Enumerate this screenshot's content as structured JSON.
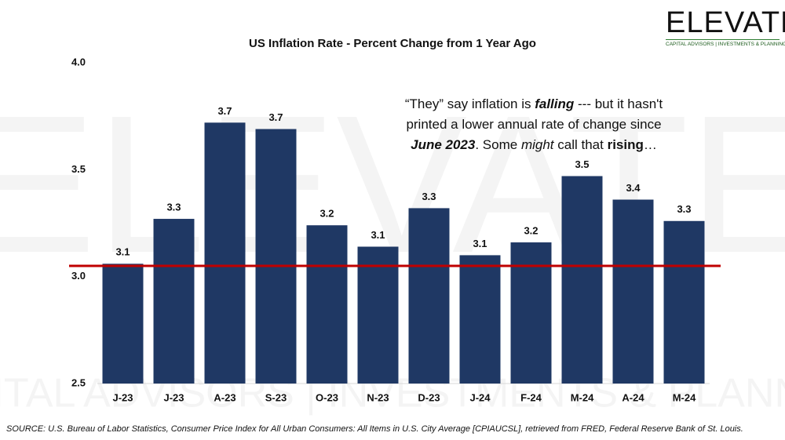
{
  "brand": {
    "name": "ELEVATE",
    "tagline": "CAPITAL ADVISORS | INVESTMENTS & PLANNING"
  },
  "chart_data": {
    "type": "bar",
    "title": "US Inflation Rate - Percent Change from 1 Year Ago",
    "categories": [
      "J-23",
      "J-23",
      "A-23",
      "S-23",
      "O-23",
      "N-23",
      "D-23",
      "J-24",
      "F-24",
      "M-24",
      "A-24",
      "M-24"
    ],
    "values": [
      3.06,
      3.27,
      3.72,
      3.69,
      3.24,
      3.14,
      3.32,
      3.1,
      3.16,
      3.47,
      3.36,
      3.26
    ],
    "value_labels": [
      "3.1",
      "3.3",
      "3.7",
      "3.7",
      "3.2",
      "3.1",
      "3.3",
      "3.1",
      "3.2",
      "3.5",
      "3.4",
      "3.3"
    ],
    "color": "#1f3864",
    "ylim": [
      2.5,
      4.0
    ],
    "yticks": [
      {
        "value": 2.5,
        "label": "2.5"
      },
      {
        "value": 3.0,
        "label": "3.0"
      },
      {
        "value": 3.5,
        "label": "3.5"
      },
      {
        "value": 4.0,
        "label": "4.0"
      }
    ],
    "reference_line": {
      "value": 3.05,
      "color": "#c00000"
    },
    "annotation": [
      "“They” say inflation is ",
      "falling",
      " --- but it hasn't",
      "printed a lower annual rate of change since",
      "June 2023",
      ". Some ",
      "might",
      " call that ",
      "rising",
      "…"
    ],
    "source": "SOURCE: U.S. Bureau of Labor Statistics, Consumer Price Index for All Urban Consumers: All Items in U.S. City Average [CPIAUCSL], retrieved from FRED, Federal Reserve Bank of St. Louis."
  }
}
